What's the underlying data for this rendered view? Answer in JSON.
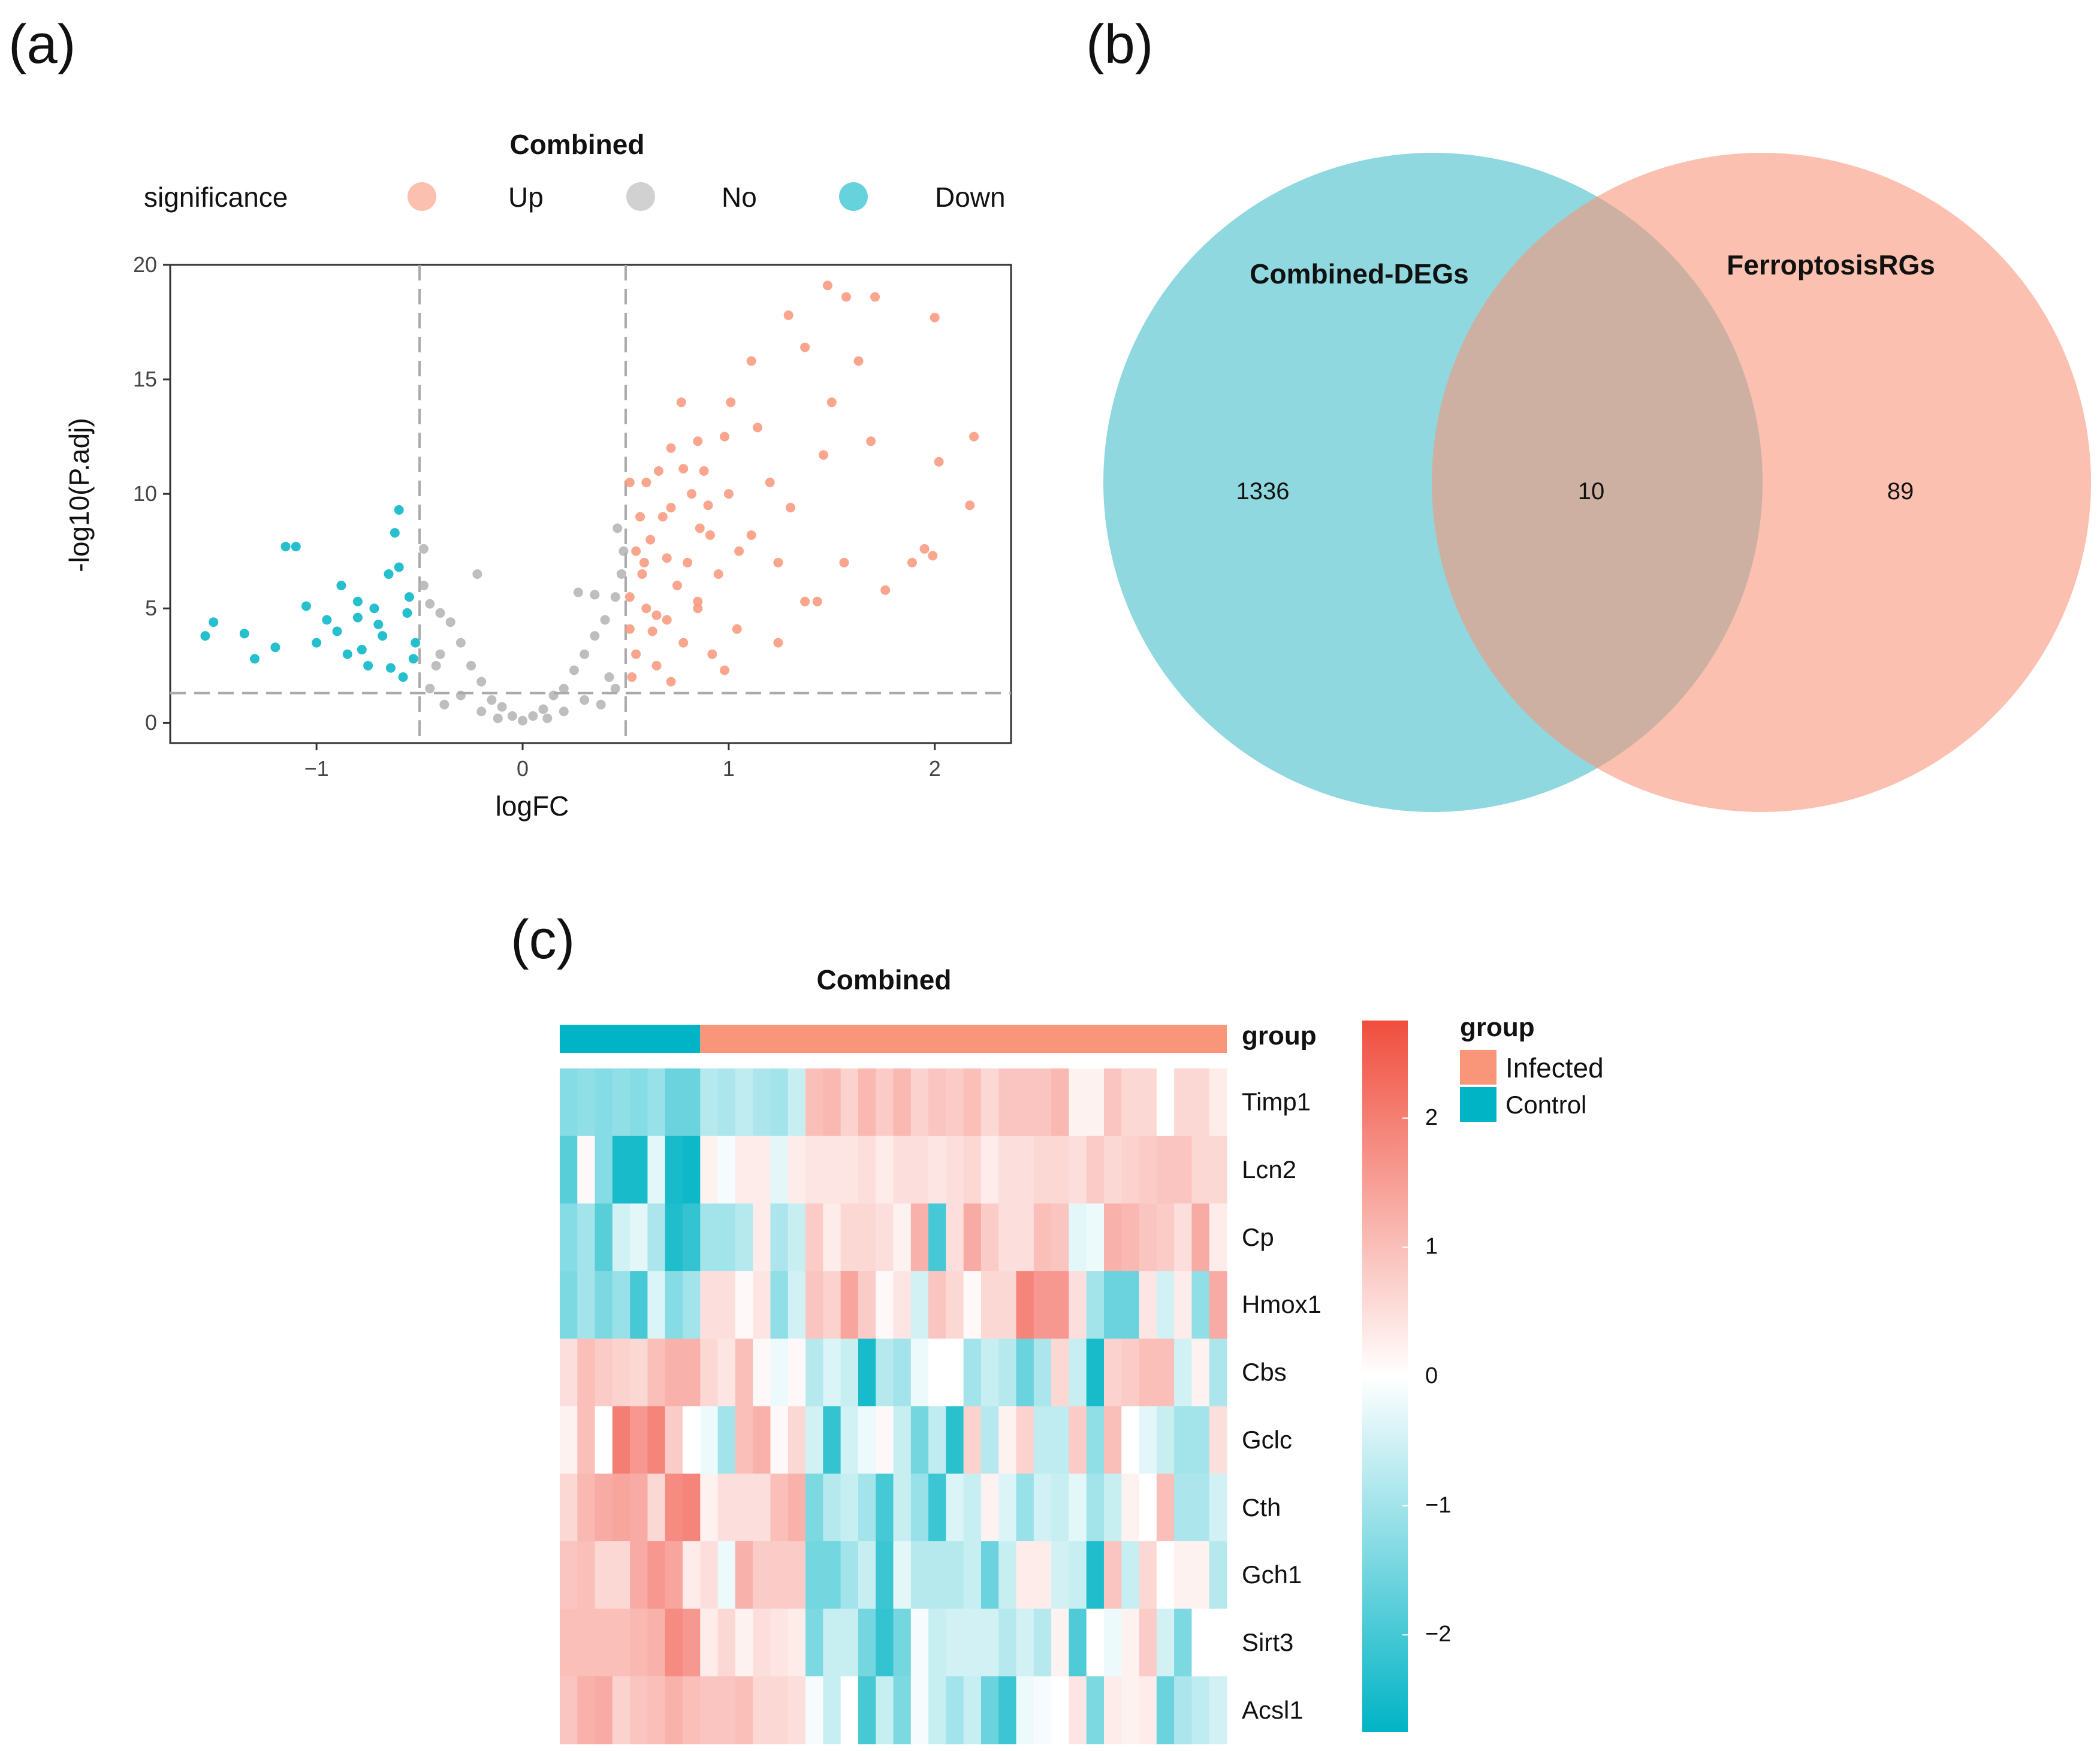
{
  "panels": {
    "a": "(a)",
    "b": "(b)",
    "c": "(c)"
  },
  "chart_data": [
    {
      "type": "scatter",
      "title": "Combined",
      "xlabel": "logFC",
      "ylabel": "-log10(P.adj)",
      "xlim": [
        -1.71,
        2.37
      ],
      "ylim": [
        -0.88,
        20
      ],
      "xticks": [
        -1,
        0,
        1,
        2
      ],
      "yticks": [
        0,
        5,
        10,
        15,
        20
      ],
      "thresholds": {
        "logFC": [
          -0.5,
          0.5
        ],
        "neglog10_padj": 1.3
      },
      "legend": {
        "title": "significance",
        "position": "top",
        "entries": [
          "Up",
          "No",
          "Down"
        ]
      },
      "colors": {
        "Up": "#F9967A",
        "No": "#B3B3B3",
        "Down": "#00B4C5"
      },
      "series": [
        {
          "name": "Up",
          "points": [
            [
              1.48,
              19.1
            ],
            [
              1.57,
              18.6
            ],
            [
              1.71,
              18.6
            ],
            [
              2.0,
              17.7
            ],
            [
              2.19,
              12.5
            ],
            [
              2.02,
              11.4
            ],
            [
              2.17,
              9.5
            ],
            [
              1.99,
              7.3
            ],
            [
              1.89,
              7.0
            ],
            [
              1.37,
              16.4
            ],
            [
              1.29,
              17.8
            ],
            [
              1.11,
              15.8
            ],
            [
              1.63,
              15.8
            ],
            [
              1.5,
              14.0
            ],
            [
              1.69,
              12.3
            ],
            [
              1.56,
              7.0
            ],
            [
              1.43,
              5.3
            ],
            [
              1.24,
              3.5
            ],
            [
              0.98,
              2.3
            ],
            [
              0.72,
              1.8
            ],
            [
              0.85,
              12.3
            ],
            [
              1.01,
              14.0
            ],
            [
              0.72,
              9.4
            ],
            [
              0.59,
              7.0
            ],
            [
              0.52,
              4.1
            ],
            [
              1.11,
              8.2
            ],
            [
              1.3,
              9.4
            ],
            [
              0.85,
              5.3
            ],
            [
              0.65,
              4.7
            ],
            [
              0.91,
              8.2
            ],
            [
              0.52,
              10.5
            ],
            [
              0.78,
              11.1
            ],
            [
              1.24,
              7.0
            ],
            [
              1.04,
              4.1
            ],
            [
              1.37,
              5.3
            ],
            [
              1.76,
              5.8
            ],
            [
              1.95,
              7.6
            ],
            [
              1.14,
              12.9
            ],
            [
              1.46,
              11.7
            ],
            [
              1.2,
              10.5
            ],
            [
              0.55,
              3
            ],
            [
              0.6,
              5
            ],
            [
              0.62,
              8
            ],
            [
              0.58,
              6.5
            ],
            [
              0.7,
              4.5
            ],
            [
              0.75,
              6
            ],
            [
              0.68,
              9
            ],
            [
              0.8,
              7
            ],
            [
              0.85,
              5
            ],
            [
              0.9,
              9.5
            ],
            [
              0.53,
              2
            ],
            [
              0.65,
              2.5
            ],
            [
              0.78,
              3.5
            ],
            [
              0.95,
              6.5
            ],
            [
              0.88,
              11
            ],
            [
              0.72,
              12
            ],
            [
              0.82,
              10
            ],
            [
              0.6,
              10.5
            ],
            [
              0.55,
              7.5
            ],
            [
              0.66,
              11
            ],
            [
              0.92,
              3
            ],
            [
              1.0,
              10
            ],
            [
              1.05,
              7.5
            ],
            [
              0.98,
              12.5
            ],
            [
              0.77,
              14
            ],
            [
              0.7,
              7.2
            ],
            [
              0.63,
              4
            ],
            [
              0.57,
              9
            ],
            [
              0.86,
              8.5
            ],
            [
              0.52,
              5.5
            ]
          ]
        },
        {
          "name": "No",
          "points": [
            [
              0,
              0.1
            ],
            [
              0.05,
              0.3
            ],
            [
              -0.05,
              0.3
            ],
            [
              0.1,
              0.6
            ],
            [
              -0.1,
              0.7
            ],
            [
              0.15,
              1.2
            ],
            [
              -0.15,
              1.0
            ],
            [
              0.2,
              1.5
            ],
            [
              -0.2,
              1.8
            ],
            [
              0.25,
              2.3
            ],
            [
              -0.25,
              2.5
            ],
            [
              0.3,
              3
            ],
            [
              -0.3,
              3.5
            ],
            [
              0.35,
              3.8
            ],
            [
              -0.35,
              4.4
            ],
            [
              0.4,
              4.5
            ],
            [
              -0.4,
              4.8
            ],
            [
              0.45,
              5.5
            ],
            [
              -0.45,
              5.2
            ],
            [
              0.48,
              6.5
            ],
            [
              -0.48,
              6.0
            ],
            [
              0.42,
              2
            ],
            [
              -0.42,
              2.5
            ],
            [
              0.3,
              1
            ],
            [
              -0.3,
              1.2
            ],
            [
              0.2,
              0.5
            ],
            [
              -0.2,
              0.5
            ],
            [
              0.46,
              8.5
            ],
            [
              0.35,
              5.6
            ],
            [
              -0.22,
              6.5
            ],
            [
              -0.48,
              7.6
            ],
            [
              0.49,
              7.5
            ],
            [
              0.45,
              1.5
            ],
            [
              -0.45,
              1.5
            ],
            [
              0.38,
              0.8
            ],
            [
              -0.38,
              0.8
            ],
            [
              0.12,
              0.2
            ],
            [
              -0.12,
              0.2
            ],
            [
              0.27,
              5.7
            ],
            [
              -0.4,
              3.0
            ]
          ]
        },
        {
          "name": "Down",
          "points": [
            [
              -1.54,
              3.8
            ],
            [
              -1.5,
              4.4
            ],
            [
              -1.35,
              3.9
            ],
            [
              -1.15,
              7.7
            ],
            [
              -1.1,
              7.7
            ],
            [
              -0.95,
              4.5
            ],
            [
              -0.88,
              6.0
            ],
            [
              -0.8,
              5.3
            ],
            [
              -0.7,
              4.3
            ],
            [
              -0.6,
              9.3
            ],
            [
              -0.62,
              8.3
            ],
            [
              -0.65,
              6.5
            ],
            [
              -0.55,
              5.5
            ],
            [
              -0.52,
              3.5
            ],
            [
              -0.58,
              2.0
            ],
            [
              -0.75,
              2.5
            ],
            [
              -0.85,
              3.0
            ],
            [
              -1.0,
              3.5
            ],
            [
              -1.2,
              3.3
            ],
            [
              -1.3,
              2.8
            ],
            [
              -0.9,
              4.0
            ],
            [
              -0.68,
              3.8
            ],
            [
              -0.56,
              4.8
            ],
            [
              -0.72,
              5.0
            ],
            [
              -0.6,
              6.8
            ],
            [
              -0.78,
              3.2
            ],
            [
              -0.64,
              2.4
            ],
            [
              -0.53,
              2.8
            ],
            [
              -0.8,
              4.6
            ],
            [
              -1.05,
              5.1
            ]
          ]
        }
      ]
    },
    {
      "type": "venn",
      "sets": [
        {
          "name": "Combined-DEGs",
          "only": 1336,
          "color": "#8FD8DF"
        },
        {
          "name": "FerroptosisRGs",
          "only": 89,
          "color": "#F9967A"
        }
      ],
      "intersection": 10
    },
    {
      "type": "heatmap",
      "title": "Combined",
      "annotation_label": "group",
      "groups": [
        {
          "name": "Control",
          "count": 8,
          "color": "#00B4C5"
        },
        {
          "name": "Infected",
          "count": 30,
          "color": "#F9967A"
        }
      ],
      "legend": {
        "title": "group",
        "entries": [
          "Infected",
          "Control"
        ],
        "position": "right"
      },
      "colorbar": {
        "ticks": [
          2,
          1,
          0,
          -1,
          -2
        ],
        "range": [
          -2.75,
          2.75
        ],
        "low": "#00B4C5",
        "mid": "#FFFFFF",
        "high": "#F04E3E"
      },
      "rows": [
        "Timp1",
        "Lcn2",
        "Cp",
        "Hmox1",
        "Cbs",
        "Gclc",
        "Cth",
        "Gch1",
        "Sirt3",
        "Acsl1"
      ],
      "values": [
        [
          -1.3,
          -1.2,
          -1.3,
          -1.2,
          -1.3,
          -1.1,
          -1.6,
          -1.6,
          -0.8,
          -0.9,
          -0.7,
          -0.9,
          -1.0,
          -0.6,
          1.0,
          1.1,
          0.7,
          1.1,
          0.8,
          1.1,
          0.7,
          0.9,
          0.8,
          1.0,
          0.6,
          0.9,
          0.9,
          0.9,
          1.1,
          0.2,
          0.2,
          0.9,
          0.6,
          0.6,
          0.0,
          0.6,
          0.6,
          0.3
        ],
        [
          -1.8,
          0.1,
          -1.3,
          -2.5,
          -2.5,
          -0.3,
          -2.5,
          -2.6,
          0.2,
          -0.1,
          0.3,
          0.3,
          -0.3,
          0.3,
          0.4,
          0.4,
          0.4,
          0.5,
          0.3,
          0.5,
          0.5,
          0.4,
          0.5,
          0.6,
          0.3,
          0.5,
          0.5,
          0.6,
          0.6,
          0.5,
          0.8,
          0.6,
          0.7,
          0.8,
          0.9,
          0.9,
          0.6,
          0.6
        ],
        [
          -1.3,
          -1.0,
          -1.8,
          -0.5,
          -0.3,
          -0.9,
          -2.4,
          -2.2,
          -1.0,
          -1.0,
          -0.8,
          0.3,
          -0.9,
          -0.6,
          0.8,
          0.3,
          0.6,
          0.6,
          0.5,
          0.2,
          1.2,
          -2.0,
          0.5,
          1.3,
          0.8,
          0.5,
          0.5,
          1.0,
          0.9,
          -0.3,
          -0.2,
          1.2,
          1.1,
          0.9,
          0.8,
          0.5,
          1.3,
          0.3
        ],
        [
          -1.4,
          -1.0,
          -1.4,
          -1.1,
          -2.0,
          -0.4,
          -1.3,
          -1.0,
          0.5,
          0.5,
          0.1,
          0.4,
          -1.2,
          -0.5,
          0.9,
          0.7,
          1.4,
          0.8,
          0.1,
          0.4,
          -0.5,
          0.9,
          0.6,
          0.1,
          0.6,
          0.6,
          1.9,
          1.6,
          1.6,
          0.5,
          -1.0,
          -1.6,
          -1.6,
          0.4,
          -0.5,
          0.3,
          -1.2,
          1.3
        ],
        [
          0.5,
          1.0,
          0.8,
          0.7,
          0.6,
          1.0,
          1.2,
          1.2,
          0.6,
          0.4,
          1.0,
          0.1,
          -0.2,
          0.1,
          -0.8,
          -0.4,
          -0.6,
          -2.5,
          -0.8,
          -1.0,
          -0.2,
          0.0,
          0.0,
          -1.0,
          -0.6,
          -0.8,
          -1.6,
          -0.9,
          0.6,
          -0.6,
          -2.5,
          0.7,
          0.8,
          1.0,
          1.0,
          -0.5,
          0.2,
          -0.9
        ],
        [
          0.2,
          1.0,
          0.0,
          2.0,
          1.6,
          1.9,
          0.8,
          0.0,
          -0.2,
          -1.0,
          1.0,
          1.2,
          0.1,
          0.6,
          -0.5,
          -2.2,
          -0.5,
          -0.2,
          0.1,
          -0.6,
          -1.5,
          -0.7,
          -2.3,
          0.7,
          -0.8,
          0.2,
          0.7,
          -0.7,
          -0.7,
          0.8,
          -1.2,
          1.0,
          0.0,
          -0.3,
          -0.6,
          -1.0,
          -1.0,
          0.5
        ],
        [
          0.6,
          1.1,
          1.3,
          1.4,
          1.3,
          0.6,
          1.8,
          1.9,
          0.2,
          0.5,
          0.5,
          0.5,
          1.0,
          1.2,
          -1.4,
          -0.8,
          -0.6,
          -1.0,
          -2.0,
          -0.6,
          -1.1,
          -2.1,
          -0.4,
          -0.6,
          0.2,
          -0.4,
          -1.1,
          -0.5,
          -0.6,
          -0.3,
          -1.0,
          -0.6,
          0.2,
          0.0,
          1.0,
          -0.9,
          -0.9,
          -0.5
        ],
        [
          0.9,
          1.0,
          0.6,
          0.6,
          1.3,
          1.6,
          1.4,
          0.3,
          0.5,
          -0.2,
          1.2,
          0.8,
          0.8,
          0.8,
          -1.5,
          -1.5,
          -1.0,
          -0.6,
          -2.1,
          -0.3,
          -0.8,
          -0.8,
          -0.8,
          -0.6,
          -1.6,
          -0.6,
          0.3,
          0.3,
          -0.5,
          -0.6,
          -2.4,
          0.9,
          -0.6,
          0.6,
          0.0,
          0.2,
          0.2,
          -0.8
        ],
        [
          1.0,
          1.0,
          1.0,
          1.0,
          1.1,
          1.2,
          1.8,
          1.6,
          0.3,
          0.6,
          0.2,
          0.5,
          0.4,
          0.3,
          -1.4,
          -0.6,
          -0.6,
          -1.5,
          -2.2,
          -1.5,
          -0.1,
          -0.6,
          -0.5,
          -0.5,
          -0.5,
          -0.8,
          -0.5,
          -0.8,
          0.2,
          -1.9,
          0.0,
          -0.2,
          0.2,
          0.8,
          -0.5,
          -1.4,
          0.0,
          0.0
        ],
        [
          0.9,
          1.2,
          1.3,
          0.7,
          0.9,
          1.0,
          1.2,
          1.0,
          0.9,
          0.9,
          1.0,
          0.6,
          0.6,
          0.5,
          -0.1,
          -0.6,
          0.0,
          -2.0,
          -0.6,
          -1.4,
          -0.1,
          -0.6,
          -1.0,
          -0.6,
          -1.6,
          -2.1,
          -0.2,
          -0.1,
          0.0,
          0.4,
          -1.4,
          0.3,
          0.2,
          0.3,
          -1.6,
          -0.9,
          -0.7,
          -0.5
        ]
      ]
    }
  ]
}
